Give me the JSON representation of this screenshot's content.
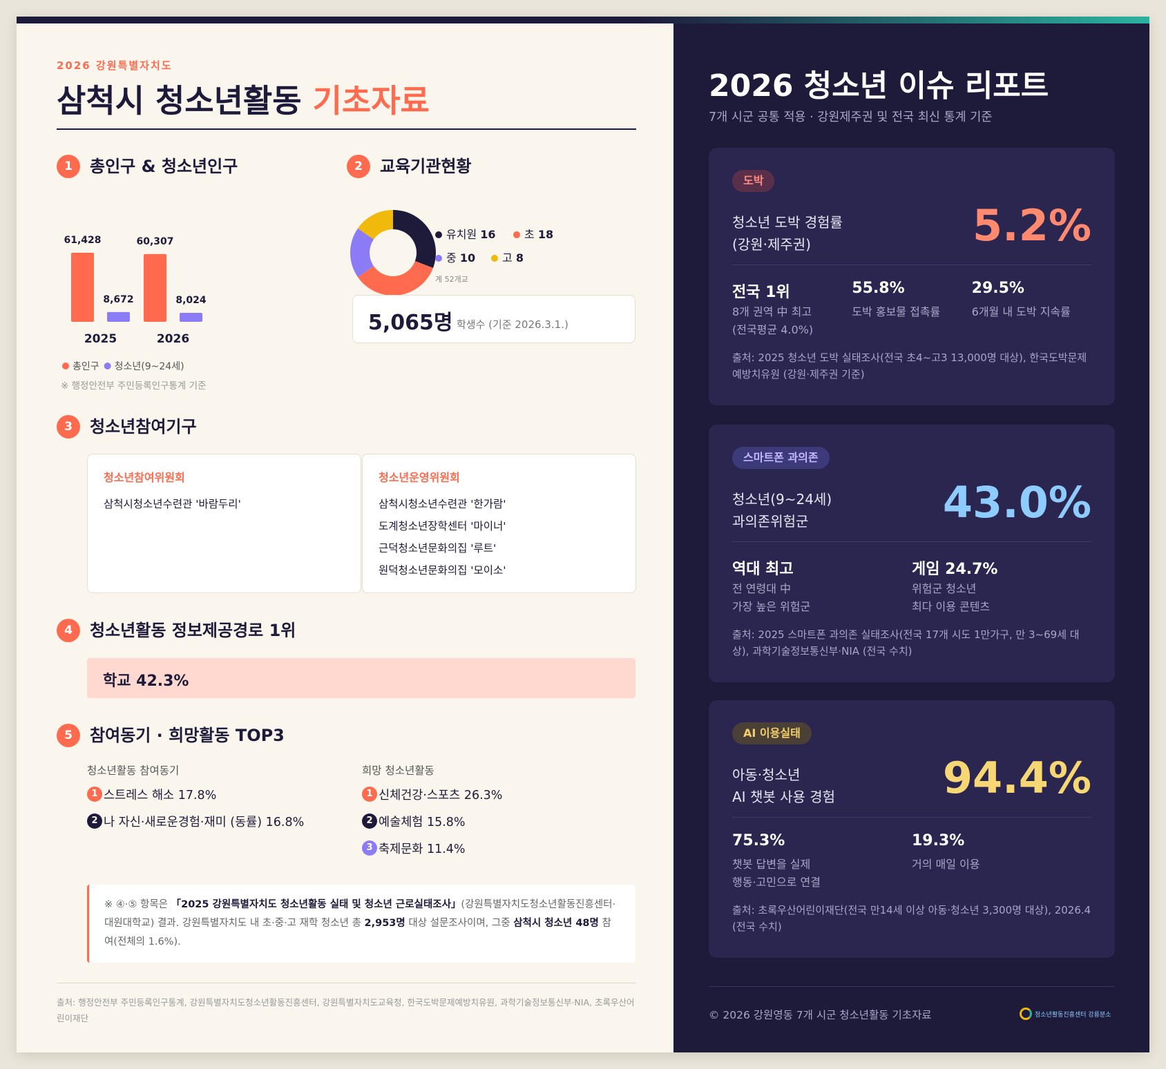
{
  "header": {
    "kicker": "2026 강원특별자치도",
    "title": "삼척시 청소년활동",
    "title_accent": "기초자료"
  },
  "sections": [
    {
      "number": "1",
      "title": "총인구 & 청소년인구"
    },
    {
      "number": "2",
      "title": "교육기관현황"
    },
    {
      "number": "3",
      "title": "청소년참여기구"
    },
    {
      "number": "4",
      "title": "청소년활동 정보제공경로 1위"
    },
    {
      "number": "5",
      "title": "참여동기 · 희망활동 TOP3"
    }
  ],
  "chart_data": [
    {
      "type": "bar",
      "categories": [
        "2025",
        "2026"
      ],
      "series": [
        {
          "name": "총인구",
          "color": "#ff6b4f",
          "values": [
            61428,
            60307
          ],
          "value_labels": [
            "61,428",
            "60,307"
          ]
        },
        {
          "name": "청소년(9~24세)",
          "color": "#8b7cf6",
          "values": [
            8672,
            8024
          ],
          "value_labels": [
            "8,672",
            "8,024"
          ]
        }
      ],
      "note": "※ 행정안전부 주민등록인구통계 기준"
    },
    {
      "type": "pie",
      "donut": true,
      "categories": [
        "유치원",
        "초",
        "중",
        "고"
      ],
      "values": [
        16,
        18,
        10,
        8
      ],
      "colors": [
        "#1e1b3a",
        "#ff6b4f",
        "#8b7cf6",
        "#f0b90b"
      ],
      "total_label": "계 52개교"
    }
  ],
  "students": {
    "value": "5,065명",
    "label": "학생수 (기준 2026.3.1.)"
  },
  "bodies": [
    {
      "title": "청소년참여위원회",
      "items": [
        "삼척시청소년수련관 '바람두리'"
      ]
    },
    {
      "title": "청소년운영위원회",
      "items": [
        "삼척시청소년수련관 '한가람'",
        "도계청소년장학센터 '마이너'",
        "근덕청소년문화의집 '루트'",
        "원덕청소년문화의집 '모이소'"
      ]
    }
  ],
  "info_channel": "학교 42.3%",
  "top3": [
    {
      "title": "청소년활동 참여동기",
      "items": [
        {
          "rank": "1",
          "text": "스트레스 해소 17.8%"
        },
        {
          "rank": "2",
          "text": "나 자신·새로운경험·재미 (동률) 16.8%"
        }
      ]
    },
    {
      "title": "희망 청소년활동",
      "items": [
        {
          "rank": "1",
          "text": "신체건강·스포츠 26.3%"
        },
        {
          "rank": "2",
          "text": "예술체험 15.8%"
        },
        {
          "rank": "3",
          "text": "축제문화 11.4%"
        }
      ]
    }
  ],
  "note": [
    "※ ④·⑤ 항목은 ",
    "「2025 강원특별자치도 청소년활동 실태 및 청소년 근로실태조사」",
    "(강원특별자치도청소년활동진흥센터·대원대학교) 결과. 강원특별자치도 내 초·중·고 재학 청소년 총 ",
    "2,953명",
    " 대상 설문조사이며, 그중 ",
    "삼척시 청소년 48명",
    " 참여(전체의 1.6%)."
  ],
  "source": "출처: 행정안전부 주민등록인구통계, 강원특별자치도청소년활동진흥센터, 강원특별자치도교육청, 한국도박문제예방치유원, 과학기술정보통신부·NIA, 초록우산어린이재단",
  "report": {
    "title": "2026 청소년 이슈 리포트",
    "subtitle": "7개 시군 공통 적용 · 강원제주권 및 전국 최신 통계 기준",
    "cards": [
      {
        "tag": "도박",
        "tag_bg": "#5a2f4a",
        "tag_color": "#ff8a80",
        "label": [
          "청소년 도박 경험률",
          "(강원·제주권)"
        ],
        "big": "5.2%",
        "big_color": "#ff8a70",
        "stats": [
          {
            "value": "전국 1위",
            "lines": [
              "8개 권역 中 최고",
              "(전국평균 4.0%)"
            ]
          },
          {
            "value": "55.8%",
            "lines": [
              "도박 홍보물 접촉률"
            ]
          },
          {
            "value": "29.5%",
            "lines": [
              "6개월 내 도박 지속률"
            ]
          }
        ],
        "source": "출처: 2025 청소년 도박 실태조사(전국 초4~고3 13,000명 대상), 한국도박문제예방치유원 (강원·제주권 기준)"
      },
      {
        "tag": "스마트폰 과의존",
        "tag_bg": "#3d3a7a",
        "tag_color": "#c4b8ff",
        "label": [
          "청소년(9~24세)",
          "과의존위험군"
        ],
        "big": "43.0%",
        "big_color": "#8ecbff",
        "stats": [
          {
            "value": "역대 최고",
            "lines": [
              "전 연령대 中",
              "가장 높은 위험군"
            ]
          },
          {
            "value": "게임 24.7%",
            "lines": [
              "위험군 청소년",
              "최다 이용 콘텐츠"
            ]
          }
        ],
        "source": "출처: 2025 스마트폰 과의존 실태조사(전국 17개 시도 1만가구, 만 3~69세 대상), 과학기술정보통신부·NIA (전국 수치)"
      },
      {
        "tag": "AI 이용실태",
        "tag_bg": "#4a4036",
        "tag_color": "#f5cf6a",
        "label": [
          "아동·청소년",
          "AI 챗봇 사용 경험"
        ],
        "big": "94.4%",
        "big_color": "#f7d774",
        "stats": [
          {
            "value": "75.3%",
            "lines": [
              "챗봇 답변을 실제",
              "행동·고민으로 연결"
            ]
          },
          {
            "value": "19.3%",
            "lines": [
              "거의 매일 이용"
            ]
          }
        ],
        "source": "출처: 초록우산어린이재단(전국 만14세 이상 아동·청소년 3,300명 대상), 2026.4 (전국 수치)"
      }
    ],
    "footer": "© 2026 강원영동 7개 시군 청소년활동 기초자료",
    "logo_text": "청소년활동진흥센터 강릉분소"
  }
}
